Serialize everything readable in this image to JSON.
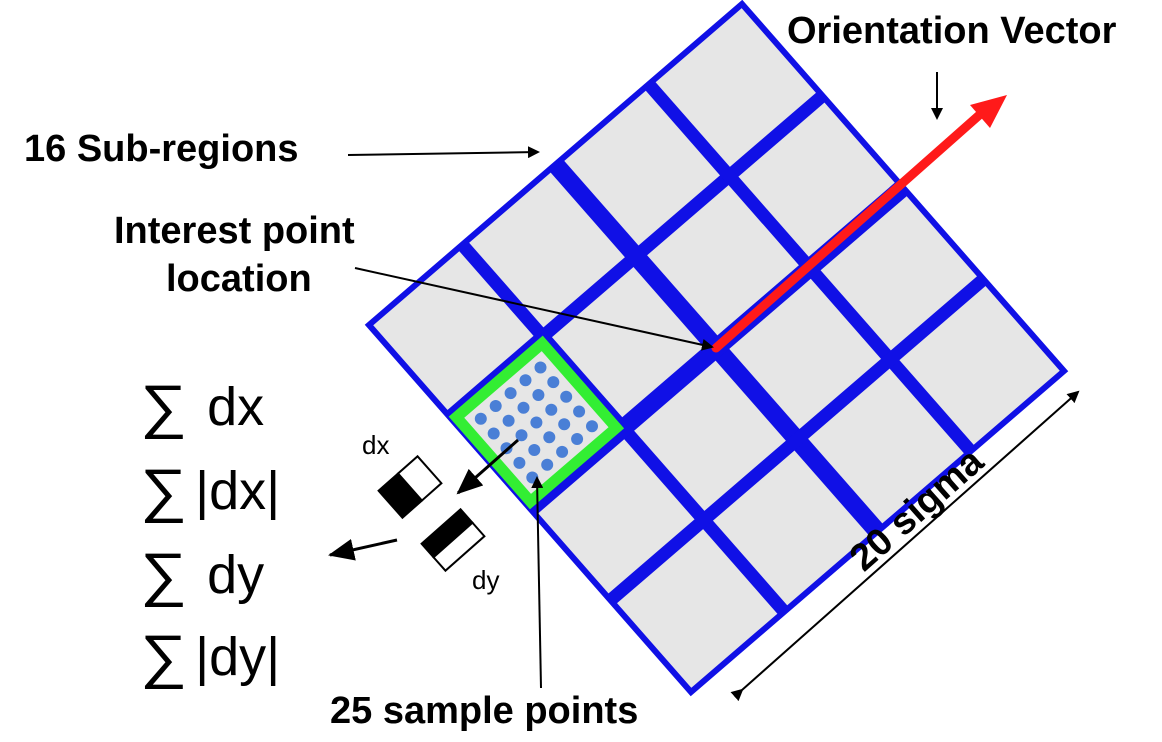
{
  "labels": {
    "orientation_vector": "Orientation Vector",
    "sub_regions": "16 Sub-regions",
    "interest_point_line1": "Interest point",
    "interest_point_line2": "location",
    "sample_points": "25 sample points",
    "scale": "20 sigma",
    "dx": "dx",
    "dy": "dy"
  },
  "formulas": {
    "symbol": "∑",
    "sum_dx": "dx",
    "sum_abs_dx": "|dx|",
    "sum_dy": "dy",
    "sum_abs_dy": "|dy|"
  },
  "grid": {
    "cells_per_side": 4,
    "samples_per_side": 5
  },
  "colors": {
    "grid_border": "#1010e6",
    "cell_fill": "#e6e6e6",
    "highlight": "#33ee33",
    "sample_point": "#4a7fd6",
    "orientation": "#ff1a1a"
  }
}
